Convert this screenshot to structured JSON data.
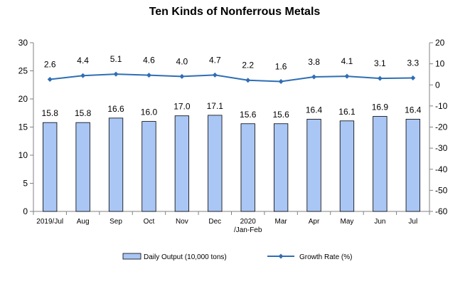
{
  "chart_data": {
    "type": "bar",
    "title": "Ten Kinds of Nonferrous Metals",
    "categories": [
      [
        "2019/Jul"
      ],
      [
        "Aug"
      ],
      [
        "Sep"
      ],
      [
        "Oct"
      ],
      [
        "Nov"
      ],
      [
        "Dec"
      ],
      [
        "2020",
        "/Jan-Feb"
      ],
      [
        "Mar"
      ],
      [
        "Apr"
      ],
      [
        "May"
      ],
      [
        "Jun"
      ],
      [
        "Jul"
      ]
    ],
    "series": [
      {
        "name": "Daily Output (10,000 tons)",
        "type": "bar",
        "axis": "left",
        "color": "#a9c6f5",
        "values": [
          15.8,
          15.8,
          16.6,
          16.0,
          17.0,
          17.1,
          15.6,
          15.6,
          16.4,
          16.1,
          16.9,
          16.4
        ]
      },
      {
        "name": "Growth Rate (%)",
        "type": "line",
        "axis": "right",
        "color": "#2f6eb5",
        "values": [
          2.6,
          4.4,
          5.1,
          4.6,
          4.0,
          4.7,
          2.2,
          1.6,
          3.8,
          4.1,
          3.1,
          3.3
        ]
      }
    ],
    "y_left": {
      "min": 0,
      "max": 30,
      "step": 5
    },
    "y_right": {
      "min": -60,
      "max": 20,
      "step": 10
    },
    "grid": false,
    "legend": "bottom"
  }
}
